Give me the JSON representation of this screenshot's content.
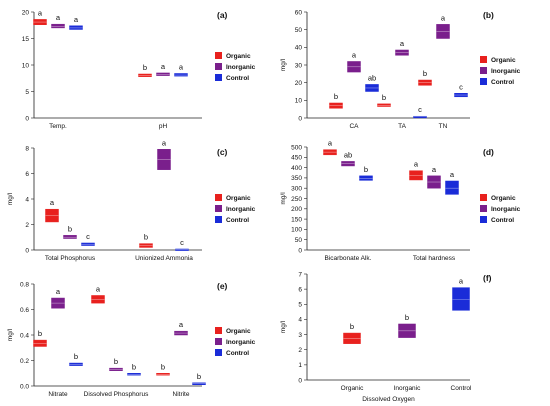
{
  "series_colors": {
    "Organic": "#e8211e",
    "Inorganic": "#7a1f8c",
    "Control": "#1a2cd8"
  },
  "chart_data": [
    {
      "type": "box",
      "panel_label": "(a)",
      "ylabel": "",
      "xlabel": "",
      "ylim": [
        0,
        20
      ],
      "yticks": [
        0,
        5,
        10,
        15,
        20
      ],
      "categories": [
        "Temp.",
        "pH"
      ],
      "legend": [
        "Organic",
        "Inorganic",
        "Control"
      ],
      "legend_position": "right",
      "boxes": [
        {
          "category": "Temp.",
          "series": "Organic",
          "low": 17.6,
          "high": 18.6,
          "median": 18.1,
          "sig": "a"
        },
        {
          "category": "Temp.",
          "series": "Inorganic",
          "low": 17.0,
          "high": 17.7,
          "median": 17.3,
          "sig": "a"
        },
        {
          "category": "Temp.",
          "series": "Control",
          "low": 16.7,
          "high": 17.4,
          "median": 17.0,
          "sig": "a"
        },
        {
          "category": "pH",
          "series": "Organic",
          "low": 7.8,
          "high": 8.3,
          "median": 8.0,
          "sig": "b"
        },
        {
          "category": "pH",
          "series": "Inorganic",
          "low": 8.0,
          "high": 8.5,
          "median": 8.2,
          "sig": "a"
        },
        {
          "category": "pH",
          "series": "Control",
          "low": 7.9,
          "high": 8.4,
          "median": 8.1,
          "sig": "a"
        }
      ]
    },
    {
      "type": "box",
      "panel_label": "(b)",
      "ylabel": "mg/l",
      "xlabel": "",
      "ylim": [
        0,
        60
      ],
      "yticks": [
        0,
        10,
        20,
        30,
        40,
        50,
        60
      ],
      "categories": [
        "CA",
        "TA",
        "TN"
      ],
      "legend": [
        "Organic",
        "Inorganic",
        "Control"
      ],
      "legend_position": "right",
      "boxes": [
        {
          "category": "CA",
          "series": "Organic",
          "low": 5.5,
          "high": 8.5,
          "median": 7,
          "sig": "b"
        },
        {
          "category": "CA",
          "series": "Inorganic",
          "low": 26,
          "high": 32,
          "median": 29,
          "sig": "a"
        },
        {
          "category": "CA",
          "series": "Control",
          "low": 15,
          "high": 19,
          "median": 17,
          "sig": "ab"
        },
        {
          "category": "TA",
          "series": "Organic",
          "low": 6.5,
          "high": 8,
          "median": 7,
          "sig": "b"
        },
        {
          "category": "TA",
          "series": "Inorganic",
          "low": 35.5,
          "high": 38.5,
          "median": 37,
          "sig": "a"
        },
        {
          "category": "TA",
          "series": "Control",
          "low": 0.6,
          "high": 1.0,
          "median": 0.8,
          "sig": "c"
        },
        {
          "category": "TN",
          "series": "Organic",
          "low": 18.5,
          "high": 21.5,
          "median": 20,
          "sig": "b"
        },
        {
          "category": "TN",
          "series": "Inorganic",
          "low": 45,
          "high": 53,
          "median": 49,
          "sig": "a"
        },
        {
          "category": "TN",
          "series": "Control",
          "low": 12,
          "high": 14,
          "median": 13,
          "sig": "c"
        }
      ]
    },
    {
      "type": "box",
      "panel_label": "(c)",
      "ylabel": "mg/l",
      "xlabel": "",
      "ylim": [
        0,
        8
      ],
      "yticks": [
        0,
        2,
        4,
        6,
        8
      ],
      "categories": [
        "Total Phosphorus",
        "Unionized Ammonia"
      ],
      "legend": [
        "Organic",
        "Inorganic",
        "Control"
      ],
      "legend_position": "right",
      "boxes": [
        {
          "category": "Total Phosphorus",
          "series": "Organic",
          "low": 2.2,
          "high": 3.2,
          "median": 2.7,
          "sig": "a"
        },
        {
          "category": "Total Phosphorus",
          "series": "Inorganic",
          "low": 0.9,
          "high": 1.15,
          "median": 1.0,
          "sig": "b"
        },
        {
          "category": "Total Phosphorus",
          "series": "Control",
          "low": 0.35,
          "high": 0.55,
          "median": 0.45,
          "sig": "c"
        },
        {
          "category": "Unionized Ammonia",
          "series": "Organic",
          "low": 0.2,
          "high": 0.5,
          "median": 0.35,
          "sig": "b"
        },
        {
          "category": "Unionized Ammonia",
          "series": "Inorganic",
          "low": 6.3,
          "high": 7.9,
          "median": 7.1,
          "sig": "a"
        },
        {
          "category": "Unionized Ammonia",
          "series": "Control",
          "low": 0.02,
          "high": 0.08,
          "median": 0.05,
          "sig": "c"
        }
      ]
    },
    {
      "type": "box",
      "panel_label": "(d)",
      "ylabel": "mg/l",
      "xlabel": "",
      "ylim": [
        0,
        500
      ],
      "yticks": [
        0,
        50,
        100,
        150,
        200,
        250,
        300,
        350,
        400,
        450,
        500
      ],
      "categories": [
        "Bicarbonate Alk.",
        "Total hardness"
      ],
      "legend": [
        "Organic",
        "Inorganic",
        "Control"
      ],
      "legend_position": "right",
      "boxes": [
        {
          "category": "Bicarbonate Alk.",
          "series": "Organic",
          "low": 462,
          "high": 487,
          "median": 475,
          "sig": "a"
        },
        {
          "category": "Bicarbonate Alk.",
          "series": "Inorganic",
          "low": 408,
          "high": 430,
          "median": 420,
          "sig": "ab"
        },
        {
          "category": "Bicarbonate Alk.",
          "series": "Control",
          "low": 338,
          "high": 360,
          "median": 348,
          "sig": "b"
        },
        {
          "category": "Total hardness",
          "series": "Organic",
          "low": 340,
          "high": 385,
          "median": 362,
          "sig": "a"
        },
        {
          "category": "Total hardness",
          "series": "Inorganic",
          "low": 300,
          "high": 360,
          "median": 330,
          "sig": "a"
        },
        {
          "category": "Total hardness",
          "series": "Control",
          "low": 270,
          "high": 335,
          "median": 300,
          "sig": "a"
        }
      ]
    },
    {
      "type": "box",
      "panel_label": "(e)",
      "ylabel": "mg/l",
      "xlabel": "",
      "ylim": [
        0,
        0.8
      ],
      "yticks": [
        0.0,
        0.2,
        0.4,
        0.6,
        0.8
      ],
      "ytick_labels": [
        "0.0",
        "0.2",
        "0.4",
        "0.6",
        "0.8"
      ],
      "categories": [
        "Nitrate",
        "Dissolved Phosphorus",
        "Nitrite"
      ],
      "legend": [
        "Organic",
        "Inorganic",
        "Control"
      ],
      "legend_position": "right",
      "boxes": [
        {
          "category": "Nitrate",
          "series": "Organic",
          "low": 0.31,
          "high": 0.36,
          "median": 0.335,
          "sig": "b"
        },
        {
          "category": "Nitrate",
          "series": "Inorganic",
          "low": 0.61,
          "high": 0.69,
          "median": 0.65,
          "sig": "a"
        },
        {
          "category": "Nitrate",
          "series": "Control",
          "low": 0.16,
          "high": 0.18,
          "median": 0.17,
          "sig": "b"
        },
        {
          "category": "Dissolved Phosphorus",
          "series": "Organic",
          "low": 0.65,
          "high": 0.71,
          "median": 0.68,
          "sig": "a"
        },
        {
          "category": "Dissolved Phosphorus",
          "series": "Inorganic",
          "low": 0.12,
          "high": 0.14,
          "median": 0.13,
          "sig": "b"
        },
        {
          "category": "Dissolved Phosphorus",
          "series": "Control",
          "low": 0.085,
          "high": 0.1,
          "median": 0.092,
          "sig": "b"
        },
        {
          "category": "Nitrite",
          "series": "Organic",
          "low": 0.085,
          "high": 0.1,
          "median": 0.092,
          "sig": "b"
        },
        {
          "category": "Nitrite",
          "series": "Inorganic",
          "low": 0.4,
          "high": 0.43,
          "median": 0.415,
          "sig": "a"
        },
        {
          "category": "Nitrite",
          "series": "Control",
          "low": 0.01,
          "high": 0.025,
          "median": 0.018,
          "sig": "b"
        }
      ]
    },
    {
      "type": "box",
      "panel_label": "(f)",
      "ylabel": "mg/l",
      "xlabel": "Dissolved Oxygen",
      "ylim": [
        0,
        7
      ],
      "yticks": [
        0,
        1,
        2,
        3,
        4,
        5,
        6,
        7
      ],
      "categories": [
        "Organic",
        "Inorganic",
        "Control"
      ],
      "legend": [],
      "legend_position": "none",
      "boxes": [
        {
          "category": "Organic",
          "series": "Organic",
          "low": 2.4,
          "high": 3.1,
          "median": 2.75,
          "sig": "b"
        },
        {
          "category": "Inorganic",
          "series": "Inorganic",
          "low": 2.8,
          "high": 3.7,
          "median": 3.25,
          "sig": "b"
        },
        {
          "category": "Control",
          "series": "Control",
          "low": 4.6,
          "high": 6.1,
          "median": 5.3,
          "sig": "a"
        }
      ]
    }
  ]
}
